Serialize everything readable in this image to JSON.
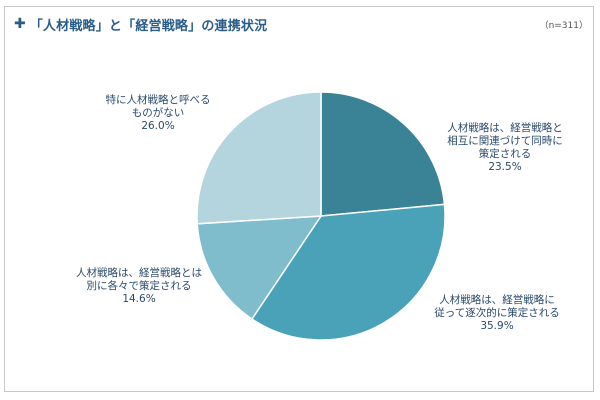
{
  "header": {
    "icon": "cross-bullet-icon",
    "title": "「人材戦略」と「経営戦略」の連携状況",
    "note": "（n=311）"
  },
  "chart_data": {
    "type": "pie",
    "title": "「人材戦略」と「経営戦略」の連携状況",
    "sample_note": "（n=311）",
    "start_angle_deg": 0,
    "direction": "clockwise",
    "slices": [
      {
        "label_lines": [
          "人材戦略は、経営戦略と",
          "相互に関連づけて同時に",
          "策定される"
        ],
        "value": 23.5,
        "value_label": "23.5%",
        "color": "#3a8296"
      },
      {
        "label_lines": [
          "人材戦略は、経営戦略に",
          "従って逐次的に策定される"
        ],
        "value": 35.9,
        "value_label": "35.9%",
        "color": "#4aa2b8"
      },
      {
        "label_lines": [
          "人材戦略は、経営戦略とは",
          "別に各々で策定される"
        ],
        "value": 14.6,
        "value_label": "14.6%",
        "color": "#7fbccc"
      },
      {
        "label_lines": [
          "特に人材戦略と呼べる",
          "ものがない"
        ],
        "value": 26.0,
        "value_label": "26.0%",
        "color": "#b4d4de"
      }
    ]
  }
}
